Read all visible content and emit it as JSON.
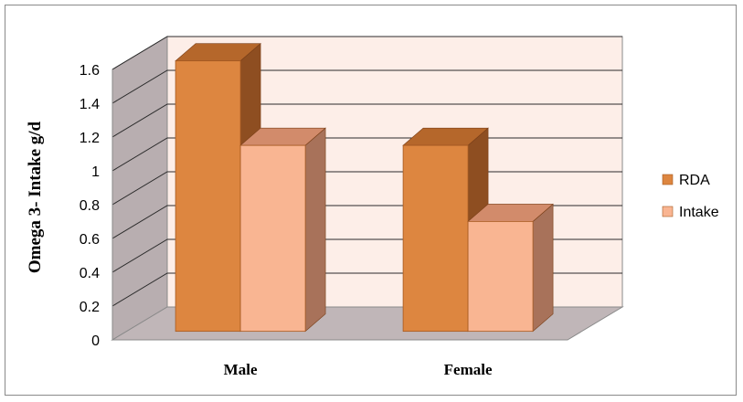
{
  "chart_data": {
    "type": "bar",
    "title": "",
    "xlabel": "",
    "ylabel": "Omega 3- Intake g/d",
    "categories": [
      "Male",
      "Female"
    ],
    "series": [
      {
        "name": "RDA",
        "values": [
          1.6,
          1.1
        ],
        "color": "#dd8640",
        "top_color": "#b5672b",
        "side_color": "#8e4e21"
      },
      {
        "name": "Intake",
        "values": [
          1.1,
          0.65
        ],
        "color": "#f9b592",
        "top_color": "#d28b6b",
        "side_color": "#a8725a"
      }
    ],
    "ylim": [
      0,
      1.6
    ],
    "yticks": [
      "0",
      "0.2",
      "0.4",
      "0.6",
      "0.8",
      "1",
      "1.2",
      "1.4",
      "1.6"
    ],
    "grid": true,
    "legend": "right",
    "style": "3d-clustered-column",
    "colors": {
      "back_wall": "#fdeee8",
      "side_wall": "#b8aeb0",
      "floor": "#c0b6b8",
      "grid": "#2b2b2b"
    }
  }
}
